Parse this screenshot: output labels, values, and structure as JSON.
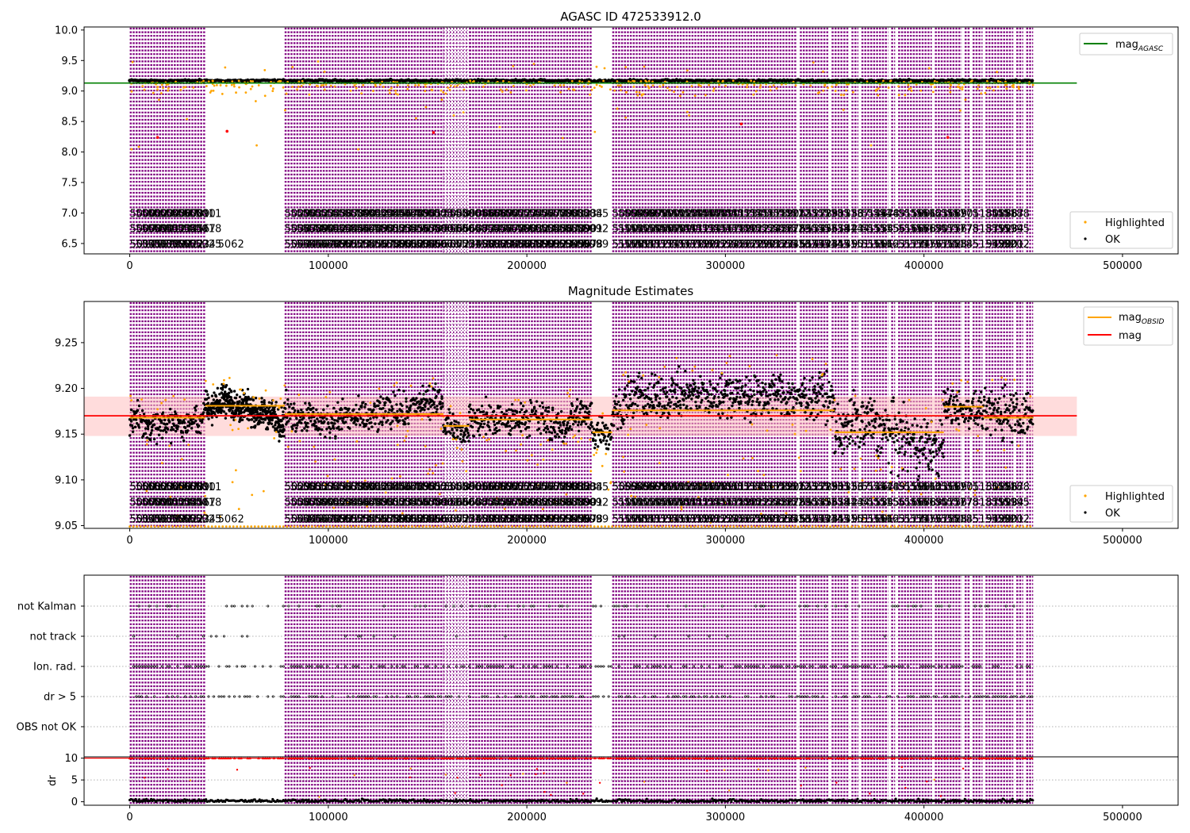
{
  "figure": {
    "title": "AGASC ID 472533912.0",
    "colors": {
      "purple": "#800080",
      "orange": "#FFA500",
      "black": "#000000",
      "red": "#FF0000",
      "green": "#008000",
      "band": "#FFC0C0",
      "dotted_grid": "#B0B0B0"
    }
  },
  "chart_data": [
    {
      "type": "scatter",
      "title": "AGASC ID 472533912.0",
      "xlim": [
        -23000,
        528000
      ],
      "ylim": [
        6.33,
        10.05
      ],
      "xticks": [
        0,
        100000,
        200000,
        300000,
        400000,
        500000
      ],
      "xtick_labels": [
        "0",
        "100000",
        "200000",
        "300000",
        "400000",
        "500000"
      ],
      "yticks": [
        6.5,
        7.0,
        7.5,
        8.0,
        8.5,
        9.0,
        9.5,
        10.0
      ],
      "ytick_labels": [
        "6.5",
        "7.0",
        "7.5",
        "8.0",
        "8.5",
        "9.0",
        "9.5",
        "10.0"
      ],
      "ok_level": 9.17,
      "reference_line": {
        "name": "mag_AGASC",
        "value": 9.13,
        "x": [
          -23000,
          477000
        ],
        "color": "#008000"
      },
      "obsid_label_rows": [
        7.0,
        6.75,
        6.5
      ],
      "visible_obsid_text": "5062",
      "legend": {
        "placement": "lower right",
        "entries": [
          {
            "label": "Highlighted",
            "color": "#FFA500"
          },
          {
            "label": "OK",
            "color": "#000000"
          }
        ]
      },
      "legend_top": {
        "placement": "upper right",
        "entries": [
          {
            "label": "mag",
            "sub": "AGASC",
            "color": "#008000"
          }
        ]
      },
      "outliers_red": [
        [
          14000,
          8.24
        ],
        [
          49000,
          8.34
        ],
        [
          153000,
          8.32
        ],
        [
          308000,
          8.46
        ],
        [
          412000,
          8.24
        ]
      ]
    },
    {
      "type": "scatter",
      "title": "Magnitude Estimates",
      "xlim": [
        -23000,
        528000
      ],
      "ylim": [
        9.047,
        9.295
      ],
      "xticks": [
        0,
        100000,
        200000,
        300000,
        400000,
        500000
      ],
      "xtick_labels": [
        "0",
        "100000",
        "200000",
        "300000",
        "400000",
        "500000"
      ],
      "yticks": [
        9.05,
        9.1,
        9.15,
        9.2,
        9.25
      ],
      "ytick_labels": [
        "9.05",
        "9.10",
        "9.15",
        "9.20",
        "9.25"
      ],
      "mag_line": {
        "name": "mag",
        "value": 9.17,
        "band": [
          9.148,
          9.191
        ],
        "x": [
          -23000,
          477000
        ],
        "color": "#FF0000"
      },
      "obs_segments": [
        {
          "x0": 0,
          "x1": 38000,
          "mag_obsid": 9.168,
          "spread": 0.032
        },
        {
          "x0": 38000,
          "x1": 78000,
          "mag_obsid": 9.181,
          "spread": 0.03
        },
        {
          "x0": 78000,
          "x1": 158000,
          "mag_obsid": 9.172,
          "spread": 0.034
        },
        {
          "x0": 158000,
          "x1": 171000,
          "mag_obsid": 9.159,
          "spread": 0.022
        },
        {
          "x0": 171000,
          "x1": 233000,
          "mag_obsid": 9.166,
          "spread": 0.036
        },
        {
          "x0": 233000,
          "x1": 243000,
          "mag_obsid": 9.152,
          "spread": 0.035
        },
        {
          "x0": 243000,
          "x1": 355000,
          "mag_obsid": 9.176,
          "spread": 0.045
        },
        {
          "x0": 355000,
          "x1": 410000,
          "mag_obsid": 9.152,
          "spread": 0.06
        },
        {
          "x0": 410000,
          "x1": 430000,
          "mag_obsid": 9.18,
          "spread": 0.035
        },
        {
          "x0": 430000,
          "x1": 455000,
          "mag_obsid": 9.168,
          "spread": 0.05
        }
      ],
      "obsid_label_rows": [
        9.093,
        9.076,
        9.058
      ],
      "visible_obsid_text": "5062",
      "legend": {
        "placement": "lower right",
        "entries": [
          {
            "label": "Highlighted",
            "color": "#FFA500"
          },
          {
            "label": "OK",
            "color": "#000000"
          }
        ]
      },
      "legend_top": {
        "placement": "upper right",
        "entries": [
          {
            "label": "mag",
            "sub": "OBSID",
            "color": "#FFA500"
          },
          {
            "label": "mag",
            "sub": "",
            "color": "#FF0000"
          }
        ]
      }
    },
    {
      "type": "scatter",
      "title": "",
      "xlim": [
        -23000,
        528000
      ],
      "flag_rows": [
        "not Kalman",
        "not track",
        "Ion. rad.",
        "dr > 5",
        "OBS not OK"
      ],
      "dr": {
        "ylabel": "dr",
        "yticks": [
          0,
          5,
          10
        ],
        "ytick_labels": [
          "0",
          "5",
          "10"
        ],
        "ylim": [
          -0.8,
          10.3
        ],
        "threshold": 10
      },
      "xticks": [
        0,
        100000,
        200000,
        300000,
        400000,
        500000
      ],
      "xtick_labels": [
        "0",
        "100000",
        "200000",
        "300000",
        "400000",
        "500000"
      ]
    }
  ],
  "observation_windows": [
    [
      0,
      38000
    ],
    [
      78000,
      158000
    ],
    [
      158000,
      171000
    ],
    [
      171000,
      233000
    ],
    [
      243000,
      336000
    ],
    [
      337500,
      352000
    ],
    [
      353500,
      362000
    ],
    [
      363500,
      367000
    ],
    [
      368500,
      382000
    ],
    [
      383500,
      385500
    ],
    [
      387000,
      404000
    ],
    [
      405500,
      419000
    ],
    [
      420500,
      423000
    ],
    [
      424500,
      429500
    ],
    [
      431000,
      445000
    ],
    [
      446500,
      450000
    ],
    [
      451500,
      455000
    ]
  ]
}
